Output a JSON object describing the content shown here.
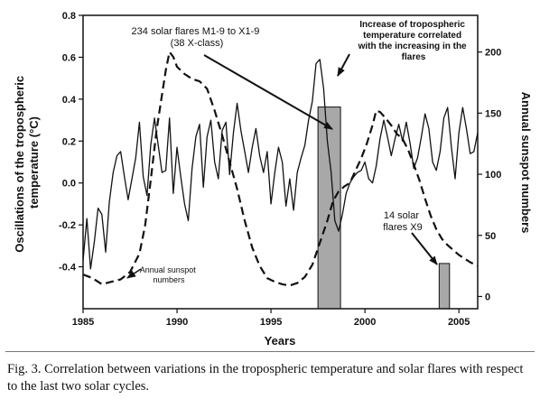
{
  "caption": "Fig. 3. Correlation between variations in the tropospheric temperature and solar flares with respect to the last two solar cycles.",
  "chart_data": {
    "type": "line",
    "xlabel": "Years",
    "ylabel_left": [
      "Oscillations of the tropospheric",
      "temperature (°C)"
    ],
    "ylabel_right": "Annual sunspot numbers",
    "xlim": [
      1985,
      2006
    ],
    "ylim_left": [
      -0.6,
      0.8
    ],
    "ylim_right": [
      -10,
      230
    ],
    "x_ticks": [
      "1985",
      "1990",
      "1995",
      "2000",
      "2005"
    ],
    "y_ticks_left": [
      "-0.4",
      "-0.2",
      "0.0",
      "0.2",
      "0.4",
      "0.6",
      "0.8"
    ],
    "y_ticks_right": [
      "0",
      "50",
      "100",
      "150",
      "200"
    ],
    "series": [
      {
        "style": "solid",
        "axis": "left",
        "x": [
          1985.0,
          1985.2,
          1985.4,
          1985.6,
          1985.8,
          1986.0,
          1986.2,
          1986.4,
          1986.6,
          1986.8,
          1987.0,
          1987.2,
          1987.4,
          1987.6,
          1987.8,
          1988.0,
          1988.2,
          1988.4,
          1988.6,
          1988.8,
          1989.0,
          1989.2,
          1989.4,
          1989.6,
          1989.8,
          1990.0,
          1990.2,
          1990.4,
          1990.6,
          1990.8,
          1991.0,
          1991.2,
          1991.4,
          1991.6,
          1991.8,
          1992.0,
          1992.2,
          1992.4,
          1992.6,
          1992.8,
          1993.0,
          1993.2,
          1993.4,
          1993.6,
          1993.8,
          1994.0,
          1994.2,
          1994.4,
          1994.6,
          1994.8,
          1995.0,
          1995.2,
          1995.4,
          1995.6,
          1995.8,
          1996.0,
          1996.2,
          1996.4,
          1996.6,
          1996.8,
          1997.0,
          1997.2,
          1997.4,
          1997.6,
          1997.8,
          1998.0,
          1998.2,
          1998.4,
          1998.6,
          1998.8,
          1999.0,
          1999.2,
          1999.4,
          1999.6,
          1999.8,
          2000.0,
          2000.2,
          2000.4,
          2000.6,
          2000.8,
          2001.0,
          2001.2,
          2001.4,
          2001.6,
          2001.8,
          2002.0,
          2002.2,
          2002.4,
          2002.6,
          2002.8,
          2003.0,
          2003.2,
          2003.4,
          2003.6,
          2003.8,
          2004.0,
          2004.2,
          2004.4,
          2004.6,
          2004.8,
          2005.0,
          2005.2,
          2005.4,
          2005.6,
          2005.8,
          2006.0
        ],
        "y": [
          -0.37,
          -0.17,
          -0.41,
          -0.28,
          -0.12,
          -0.15,
          -0.33,
          -0.09,
          0.05,
          0.13,
          0.15,
          0.03,
          -0.08,
          0.02,
          0.12,
          0.29,
          0.03,
          -0.06,
          0.18,
          0.31,
          0.18,
          0.05,
          0.06,
          0.31,
          -0.05,
          0.17,
          0.03,
          -0.1,
          -0.18,
          0.07,
          0.22,
          0.28,
          -0.02,
          0.22,
          0.3,
          0.1,
          0.02,
          0.25,
          0.29,
          0.04,
          0.24,
          0.38,
          0.25,
          0.15,
          0.05,
          0.17,
          0.26,
          0.13,
          0.05,
          0.15,
          -0.1,
          0.05,
          0.17,
          0.1,
          -0.11,
          0.02,
          -0.13,
          0.05,
          0.12,
          0.18,
          0.3,
          0.39,
          0.57,
          0.59,
          0.45,
          0.2,
          0.05,
          -0.18,
          -0.23,
          -0.15,
          -0.05,
          0.0,
          0.03,
          0.05,
          0.06,
          0.1,
          0.02,
          0.0,
          0.08,
          0.21,
          0.3,
          0.22,
          0.13,
          0.21,
          0.28,
          0.2,
          0.29,
          0.19,
          0.07,
          0.12,
          0.22,
          0.33,
          0.26,
          0.1,
          0.06,
          0.15,
          0.31,
          0.36,
          0.17,
          0.02,
          0.24,
          0.36,
          0.26,
          0.14,
          0.15,
          0.24
        ]
      },
      {
        "style": "dashed",
        "axis": "right",
        "x": [
          1985.0,
          1985.5,
          1986.0,
          1986.5,
          1987.0,
          1987.5,
          1988.0,
          1988.3,
          1988.6,
          1988.9,
          1989.2,
          1989.4,
          1989.6,
          1989.8,
          1990.0,
          1990.4,
          1990.8,
          1991.2,
          1991.6,
          1992.0,
          1992.4,
          1992.8,
          1993.2,
          1993.6,
          1994.0,
          1994.4,
          1994.8,
          1995.2,
          1995.6,
          1996.0,
          1996.4,
          1996.8,
          1997.2,
          1997.6,
          1998.0,
          1998.3,
          1998.6,
          1998.9,
          1999.2,
          1999.5,
          1999.8,
          2000.1,
          2000.4,
          2000.6,
          2000.8,
          2001.1,
          2001.4,
          2001.7,
          2002.0,
          2002.3,
          2002.6,
          2002.9,
          2003.2,
          2003.5,
          2003.8,
          2004.1,
          2004.4,
          2004.7,
          2005.0,
          2005.3,
          2005.6,
          2006.0
        ],
        "y": [
          18,
          15,
          10,
          12,
          14,
          20,
          35,
          58,
          95,
          135,
          165,
          185,
          200,
          196,
          188,
          182,
          178,
          176,
          170,
          152,
          132,
          110,
          88,
          62,
          40,
          25,
          15,
          12,
          10,
          9,
          11,
          16,
          26,
          44,
          62,
          78,
          86,
          90,
          93,
          103,
          113,
          125,
          140,
          152,
          151,
          146,
          140,
          133,
          129,
          120,
          108,
          95,
          80,
          66,
          55,
          47,
          42,
          38,
          34,
          31,
          28,
          25
        ]
      }
    ],
    "bars": [
      {
        "x_start": 1997.5,
        "x_end": 1998.7,
        "value": 155
      },
      {
        "x_start": 2003.95,
        "x_end": 2004.5,
        "value": 27
      }
    ],
    "annotations": {
      "flares_main": [
        "234 solar flares M1-9 to X1-9",
        "(38 X-class)"
      ],
      "increase": [
        "Increase  of tropospheric",
        "temperature correlated",
        "with the increasing in the",
        "flares"
      ],
      "flares_x9": [
        "14 solar",
        "flares X9"
      ],
      "sunspot_label": [
        "Annual sunspot",
        "numbers"
      ]
    },
    "colors": {
      "bar_fill": "#a8a8a8",
      "line": "#111111"
    }
  }
}
